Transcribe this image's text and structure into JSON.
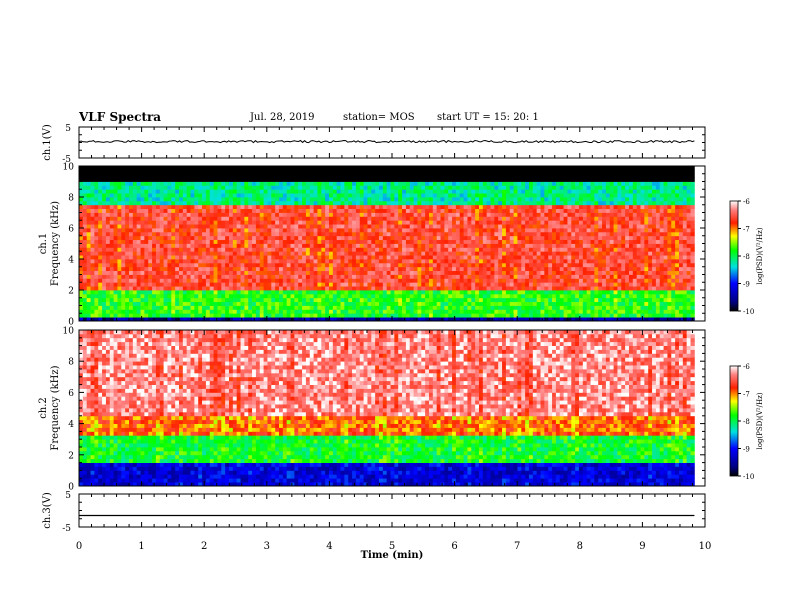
{
  "header": {
    "title": "VLF Spectra",
    "date": "Jul. 28, 2019",
    "station": "station= MOS",
    "start": "start UT =  15: 20: 1"
  },
  "chart_data": [
    {
      "type": "line",
      "panel": "ch1-waveform",
      "ylabel": "ch.1(V)",
      "ylim": [
        -5,
        5
      ],
      "yticks": [
        "5",
        "-5"
      ],
      "x": [
        0,
        9.83
      ],
      "values": [
        0.3,
        0.3
      ],
      "note": "low-amplitude noise around a constant level"
    },
    {
      "type": "heatmap",
      "panel": "ch1-spectrogram",
      "ylabel": "ch.1 Frequency (kHz)",
      "ylim": [
        0,
        10
      ],
      "yticks": [
        "0",
        "2",
        "4",
        "6",
        "8",
        "10"
      ],
      "xlim": [
        0,
        9.83
      ],
      "colorbar": {
        "label": "log(PSD)(V²/Hz)",
        "ticks": [
          "-6",
          "-7",
          "-8",
          "-9",
          "-10"
        ],
        "range": [
          -10,
          -6
        ]
      },
      "bands": [
        {
          "fmin": 0.0,
          "fmax": 0.3,
          "level": -9.5
        },
        {
          "fmin": 0.3,
          "fmax": 1.9,
          "level": -7.8
        },
        {
          "fmin": 1.9,
          "fmax": 7.6,
          "level": -6.6
        },
        {
          "fmin": 7.6,
          "fmax": 9.0,
          "level": -8.2
        },
        {
          "fmin": 9.0,
          "fmax": 10.0,
          "level": -11
        }
      ]
    },
    {
      "type": "heatmap",
      "panel": "ch2-spectrogram",
      "ylabel": "ch.2 Frequency (kHz)",
      "ylim": [
        0,
        10
      ],
      "yticks": [
        "0",
        "2",
        "4",
        "6",
        "8",
        "10"
      ],
      "xlim": [
        0,
        9.83
      ],
      "colorbar": {
        "label": "log(PSD)(V²/Hz)",
        "ticks": [
          "-6",
          "-7",
          "-8",
          "-9",
          "-10"
        ],
        "range": [
          -10,
          -6
        ]
      },
      "bands": [
        {
          "fmin": 0.0,
          "fmax": 1.6,
          "level": -9.2
        },
        {
          "fmin": 1.6,
          "fmax": 3.3,
          "level": -7.9
        },
        {
          "fmin": 3.3,
          "fmax": 4.5,
          "level": -6.9
        },
        {
          "fmin": 4.5,
          "fmax": 10.0,
          "level": -6.3
        }
      ]
    },
    {
      "type": "line",
      "panel": "ch3-waveform",
      "ylabel": "ch.3(V)",
      "ylim": [
        -5,
        5
      ],
      "yticks": [
        "5",
        "-5"
      ],
      "x": [
        0,
        9.83
      ],
      "values": [
        -1.5,
        -1.5
      ]
    }
  ],
  "xaxis": {
    "label": "Time (min)",
    "ticks": [
      "0",
      "1",
      "2",
      "3",
      "4",
      "5",
      "6",
      "7",
      "8",
      "9",
      "10"
    ],
    "xlim": [
      0,
      10
    ]
  }
}
